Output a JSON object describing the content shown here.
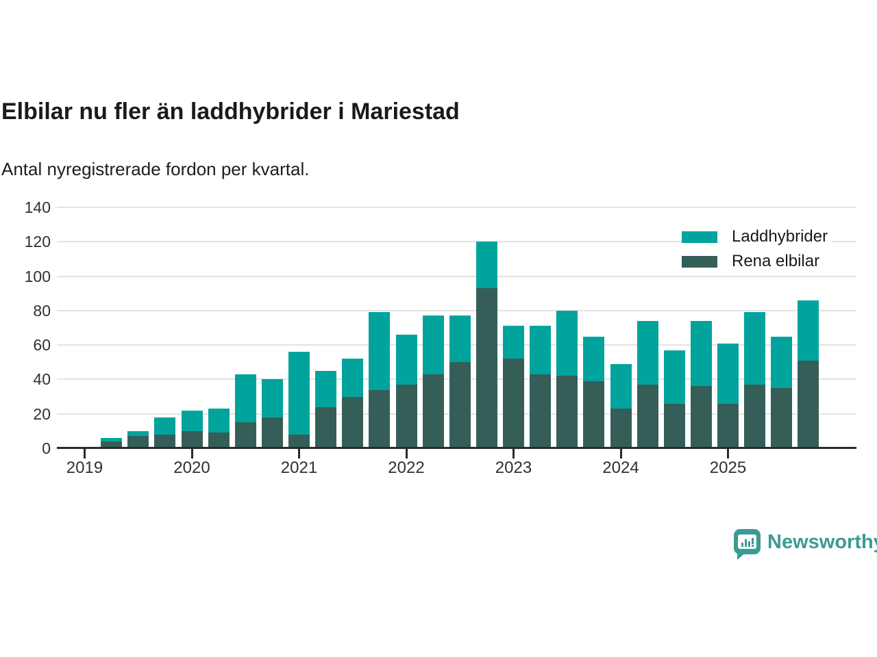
{
  "header": {
    "title": "Elbilar nu fler än laddhybrider i Mariestad",
    "subtitle": "Antal nyregistrerade fordon per kvartal."
  },
  "brand": {
    "name": "Newsworthy",
    "color": "#3c9a94"
  },
  "colors": {
    "laddhybrider": "#00a49c",
    "rena_elbilar": "#365e59",
    "gridline": "#e3e3e3",
    "axis": "#2a2a2a"
  },
  "chart_data": {
    "type": "bar",
    "stacked": true,
    "title": "Elbilar nu fler än laddhybrider i Mariestad",
    "subtitle": "Antal nyregistrerade fordon per kvartal.",
    "xlabel": "",
    "ylabel": "",
    "ylim": [
      0,
      140
    ],
    "yticks": [
      0,
      20,
      40,
      60,
      80,
      100,
      120,
      140
    ],
    "grid": true,
    "legend_position": "top-right",
    "x_tick_labels": [
      "2019",
      "2020",
      "2021",
      "2022",
      "2023",
      "2024",
      "2025"
    ],
    "categories": [
      "2019-Q1",
      "2019-Q2",
      "2019-Q3",
      "2019-Q4",
      "2020-Q1",
      "2020-Q2",
      "2020-Q3",
      "2020-Q4",
      "2021-Q1",
      "2021-Q2",
      "2021-Q3",
      "2021-Q4",
      "2022-Q1",
      "2022-Q2",
      "2022-Q3",
      "2022-Q4",
      "2023-Q1",
      "2023-Q2",
      "2023-Q3",
      "2023-Q4",
      "2024-Q1",
      "2024-Q2",
      "2024-Q3",
      "2024-Q4",
      "2025-Q1",
      "2025-Q2",
      "2025-Q3",
      "2025-Q4"
    ],
    "series": [
      {
        "name": "Laddhybrider",
        "color": "#00a49c",
        "stack_order": "top",
        "values": [
          0,
          2,
          3,
          10,
          12,
          14,
          28,
          22,
          48,
          21,
          22,
          45,
          29,
          34,
          27,
          27,
          19,
          28,
          38,
          26,
          26,
          37,
          31,
          38,
          35,
          42,
          30,
          35
        ]
      },
      {
        "name": "Rena elbilar",
        "color": "#365e59",
        "stack_order": "bottom",
        "values": [
          0,
          4,
          7,
          8,
          10,
          9,
          15,
          18,
          8,
          24,
          30,
          34,
          37,
          43,
          50,
          93,
          52,
          43,
          42,
          39,
          23,
          37,
          26,
          36,
          26,
          37,
          35,
          51
        ]
      }
    ],
    "totals": [
      0,
      6,
      10,
      18,
      22,
      23,
      43,
      40,
      56,
      45,
      52,
      79,
      66,
      77,
      77,
      120,
      71,
      71,
      80,
      65,
      49,
      74,
      57,
      74,
      61,
      79,
      65,
      86
    ]
  }
}
